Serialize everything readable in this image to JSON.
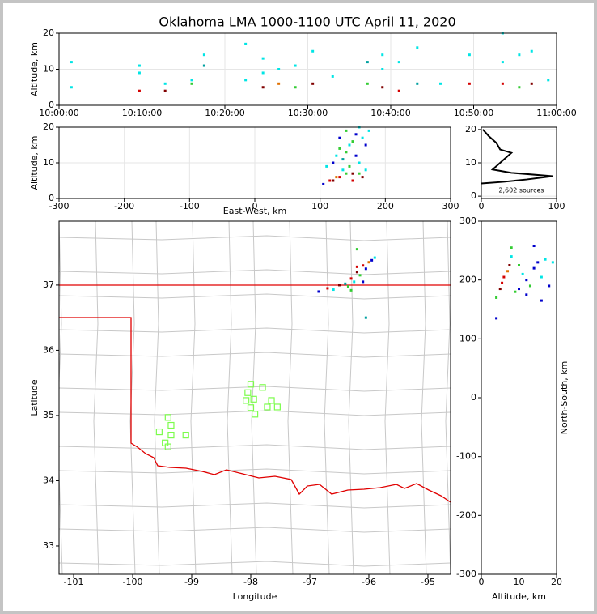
{
  "chart_data": [
    {
      "type": "scatter",
      "title": "Oklahoma LMA 1000-1100 UTC April 11, 2020",
      "ylabel": "Altitude, km",
      "xlim": [
        0,
        60
      ],
      "xticks": [
        {
          "value": 0,
          "label": "10:00:00"
        },
        {
          "value": 10,
          "label": "10:10:00"
        },
        {
          "value": 20,
          "label": "10:20:00"
        },
        {
          "value": 30,
          "label": "10:30:00"
        },
        {
          "value": 40,
          "label": "10:40:00"
        },
        {
          "value": 50,
          "label": "10:50:00"
        },
        {
          "value": 60,
          "label": "11:00:00"
        }
      ],
      "ylim": [
        0,
        20
      ],
      "yticks": [
        0,
        10,
        20
      ],
      "grid": true,
      "x": [
        1.5,
        1.5,
        9.7,
        9.7,
        9.7,
        12.8,
        12.8,
        16,
        16,
        17.5,
        17.5,
        22.5,
        22.5,
        24.6,
        24.6,
        24.6,
        26.5,
        26.5,
        28.5,
        28.5,
        30.6,
        30.6,
        33,
        37.2,
        37.2,
        39,
        39,
        39,
        41,
        41,
        43.2,
        43.2,
        46,
        49.5,
        49.5,
        53.5,
        53.5,
        53.5,
        55.5,
        55.5,
        57,
        57,
        59
      ],
      "values": [
        5,
        12,
        4,
        9,
        11,
        4,
        6,
        6,
        7,
        14,
        11,
        7,
        17,
        5,
        9,
        13,
        6,
        10,
        5,
        11,
        6,
        15,
        8,
        6,
        12,
        5,
        10,
        14,
        4,
        12,
        6,
        16,
        6,
        6,
        14,
        6,
        12,
        20,
        5,
        14,
        6,
        15,
        7
      ],
      "colors": [
        "#00e5e5",
        "#00e5e5",
        "#d40000",
        "#00e5e5",
        "#00e5e5",
        "#800000",
        "#00e5e5",
        "#33cc33",
        "#00e5e5",
        "#00e5e5",
        "#00a0a0",
        "#00e5e5",
        "#00e5e5",
        "#800000",
        "#00e5e5",
        "#00e5e5",
        "#e07000",
        "#00e5e5",
        "#33cc33",
        "#00e5e5",
        "#800000",
        "#00e5e5",
        "#00e5e5",
        "#33cc33",
        "#00a0a0",
        "#800000",
        "#00e5e5",
        "#00e5e5",
        "#d40000",
        "#00e5e5",
        "#00a0a0",
        "#00e5e5",
        "#00e5e5",
        "#d40000",
        "#00e5e5",
        "#d40000",
        "#00e5e5",
        "#00e5e5",
        "#33cc33",
        "#00e5e5",
        "#800000",
        "#00e5e5",
        "#00e5e5"
      ]
    },
    {
      "type": "scatter",
      "xlabel": "East-West, km",
      "ylabel": "Altitude, km",
      "xlim": [
        -300,
        300
      ],
      "xticks": [
        -300,
        -200,
        -100,
        0,
        100,
        200,
        300
      ],
      "ylim": [
        0,
        20
      ],
      "yticks": [
        0,
        10,
        20
      ],
      "grid": true,
      "x": [
        105,
        115,
        120,
        125,
        130,
        140,
        150,
        160,
        170,
        120,
        125,
        130,
        135,
        140,
        145,
        150,
        155,
        160,
        165,
        170,
        145,
        135,
        155,
        160,
        175,
        130,
        110,
        140,
        150,
        165
      ],
      "values": [
        4,
        5,
        5,
        6,
        6,
        7,
        7,
        7,
        8,
        10,
        12,
        14,
        11,
        13,
        15,
        16,
        18,
        20,
        17,
        15,
        9,
        8,
        12,
        10,
        19,
        17,
        9,
        19,
        5,
        6
      ],
      "colors": [
        "#0000cc",
        "#d40000",
        "#800000",
        "#e07000",
        "#d40000",
        "#33cc33",
        "#800000",
        "#33cc33",
        "#00e5e5",
        "#0000cc",
        "#00e5e5",
        "#33cc33",
        "#00a0a0",
        "#33cc33",
        "#00e5e5",
        "#33cc33",
        "#0000cc",
        "#00e5e5",
        "#00e5e5",
        "#0000cc",
        "#33cc33",
        "#00e5e5",
        "#0000cc",
        "#00e5e5",
        "#00e5e5",
        "#0000cc",
        "#00e5e5",
        "#33cc33",
        "#d40000",
        "#800000"
      ]
    },
    {
      "type": "line",
      "annotation": "2,602 sources",
      "color": "#000000",
      "xlim": [
        0,
        100
      ],
      "xticks": [
        0,
        100
      ],
      "ylim": [
        -0.7,
        20.7
      ],
      "yticks": [
        0,
        10,
        20
      ],
      "grid": true,
      "x": [
        0,
        30,
        60,
        95,
        40,
        15,
        20,
        25,
        35,
        40,
        25,
        20,
        10,
        2
      ],
      "values": [
        3.8,
        4.3,
        5,
        6,
        7,
        8,
        9,
        10,
        12,
        13,
        14,
        16,
        18,
        20
      ]
    },
    {
      "type": "scatter",
      "xlabel": "Longitude",
      "ylabel": "Latitude",
      "xlim": [
        -101.247,
        -94.616
      ],
      "xticks": [
        -101,
        -100,
        -99,
        -98,
        -97,
        -96,
        -95
      ],
      "ylim": [
        32.565,
        37.98
      ],
      "yticks": [
        33,
        34,
        35,
        36,
        37
      ],
      "grid": false,
      "x": [
        -96.85,
        -96.7,
        -96.5,
        -96.35,
        -96.3,
        -96.2,
        -96.1,
        -96.0,
        -95.9,
        -96.15,
        -96.25,
        -96.05,
        -96.4,
        -96.6,
        -96.2,
        -96.05,
        -95.95,
        -96.3,
        -96.1,
        -96.2
      ],
      "values": [
        36.9,
        36.95,
        37.0,
        36.98,
        37.1,
        37.2,
        37.3,
        37.35,
        37.42,
        37.15,
        37.05,
        37.25,
        37.02,
        36.93,
        37.55,
        36.5,
        37.38,
        36.92,
        37.05,
        37.28
      ],
      "colors": [
        "#0000cc",
        "#d40000",
        "#800000",
        "#33cc33",
        "#d40000",
        "#800000",
        "#d40000",
        "#e07000",
        "#00e5e5",
        "#33cc33",
        "#00e5e5",
        "#0000cc",
        "#00a0a0",
        "#00e5e5",
        "#33cc33",
        "#00a0a0",
        "#0000cc",
        "#33cc33",
        "#0000cc",
        "#d40000"
      ],
      "stations": {
        "color": "#7cfc4c",
        "x": [
          -99.4,
          -99.55,
          -99.35,
          -99.45,
          -99.4,
          -99.35,
          -99.1,
          -98.0,
          -97.8,
          -98.05,
          -97.95,
          -98.08,
          -97.65,
          -97.72,
          -97.55,
          -98.0,
          -97.93
        ],
        "values": [
          34.97,
          34.75,
          34.85,
          34.58,
          34.52,
          34.7,
          34.7,
          35.48,
          35.43,
          35.35,
          35.25,
          35.23,
          35.23,
          35.13,
          35.13,
          35.12,
          35.02
        ]
      }
    },
    {
      "type": "scatter",
      "xlabel": "Altitude, km",
      "ylabel": "North-South, km",
      "xlim": [
        0,
        20
      ],
      "xticks": [
        0,
        10,
        20
      ],
      "ylim": [
        -300,
        300
      ],
      "yticks": [
        -300,
        -200,
        -100,
        0,
        100,
        200,
        300
      ],
      "grid": false,
      "x": [
        4,
        5,
        5.5,
        6,
        7,
        7.5,
        8,
        8,
        4,
        10,
        12,
        14,
        13,
        11,
        15,
        16,
        18,
        17,
        9,
        12,
        19,
        14,
        16,
        10
      ],
      "values": [
        170,
        185,
        195,
        205,
        215,
        225,
        240,
        255,
        135,
        185,
        200,
        220,
        190,
        210,
        230,
        205,
        190,
        235,
        180,
        175,
        230,
        258,
        165,
        225
      ],
      "colors": [
        "#33cc33",
        "#800000",
        "#d40000",
        "#d40000",
        "#e07000",
        "#800000",
        "#00e5e5",
        "#33cc33",
        "#0000cc",
        "#0000cc",
        "#0000cc",
        "#0000cc",
        "#33cc33",
        "#00e5e5",
        "#0000cc",
        "#00e5e5",
        "#0000cc",
        "#00e5e5",
        "#33cc33",
        "#0000cc",
        "#00e5e5",
        "#0000cc",
        "#0000cc",
        "#33cc33"
      ]
    }
  ]
}
